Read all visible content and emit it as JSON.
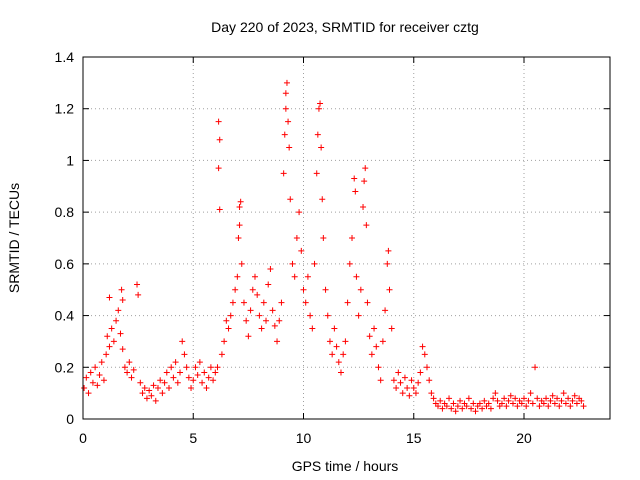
{
  "chart_data": {
    "type": "scatter",
    "title": "Day 220 of 2023, SRMTID for receiver cztg",
    "xlabel": "GPS time / hours",
    "ylabel": "SRMTID / TECUs",
    "xlim": [
      0,
      23.9
    ],
    "ylim": [
      0,
      1.4
    ],
    "x_ticks": [
      0,
      5,
      10,
      15,
      20
    ],
    "x_tick_labels": [
      "0",
      "5",
      "10",
      "15",
      "20"
    ],
    "y_ticks": [
      0,
      0.2,
      0.4,
      0.6,
      0.8,
      1.0,
      1.2,
      1.4
    ],
    "y_tick_labels": [
      "0",
      "0.2",
      "0.4",
      "0.6",
      "0.8",
      "1",
      "1.2",
      "1.4"
    ],
    "grid": true,
    "marker": "+",
    "color": "#ff0000",
    "series": [
      {
        "name": "SRMTID",
        "points": [
          [
            0.05,
            0.12
          ],
          [
            0.15,
            0.16
          ],
          [
            0.25,
            0.1
          ],
          [
            0.35,
            0.18
          ],
          [
            0.45,
            0.14
          ],
          [
            0.55,
            0.2
          ],
          [
            0.65,
            0.13
          ],
          [
            0.75,
            0.17
          ],
          [
            0.85,
            0.22
          ],
          [
            0.95,
            0.15
          ],
          [
            1.05,
            0.25
          ],
          [
            1.1,
            0.32
          ],
          [
            1.2,
            0.28
          ],
          [
            1.3,
            0.35
          ],
          [
            1.4,
            0.3
          ],
          [
            1.5,
            0.38
          ],
          [
            1.6,
            0.42
          ],
          [
            1.7,
            0.33
          ],
          [
            1.8,
            0.27
          ],
          [
            1.9,
            0.2
          ],
          [
            1.2,
            0.47
          ],
          [
            1.75,
            0.5
          ],
          [
            1.8,
            0.46
          ],
          [
            2.0,
            0.18
          ],
          [
            2.1,
            0.22
          ],
          [
            2.2,
            0.16
          ],
          [
            2.3,
            0.19
          ],
          [
            2.45,
            0.52
          ],
          [
            2.5,
            0.48
          ],
          [
            2.6,
            0.14
          ],
          [
            2.7,
            0.1
          ],
          [
            2.8,
            0.12
          ],
          [
            2.9,
            0.08
          ],
          [
            3.0,
            0.11
          ],
          [
            3.1,
            0.09
          ],
          [
            3.2,
            0.13
          ],
          [
            3.3,
            0.07
          ],
          [
            3.4,
            0.12
          ],
          [
            3.5,
            0.15
          ],
          [
            3.6,
            0.1
          ],
          [
            3.7,
            0.14
          ],
          [
            3.8,
            0.18
          ],
          [
            3.9,
            0.12
          ],
          [
            4.0,
            0.2
          ],
          [
            4.1,
            0.16
          ],
          [
            4.2,
            0.22
          ],
          [
            4.3,
            0.14
          ],
          [
            4.4,
            0.18
          ],
          [
            4.5,
            0.3
          ],
          [
            4.6,
            0.25
          ],
          [
            4.7,
            0.2
          ],
          [
            4.8,
            0.16
          ],
          [
            4.9,
            0.12
          ],
          [
            5.0,
            0.15
          ],
          [
            5.1,
            0.2
          ],
          [
            5.2,
            0.17
          ],
          [
            5.3,
            0.22
          ],
          [
            5.4,
            0.14
          ],
          [
            5.5,
            0.18
          ],
          [
            5.6,
            0.12
          ],
          [
            5.7,
            0.16
          ],
          [
            5.8,
            0.2
          ],
          [
            5.9,
            0.15
          ],
          [
            6.0,
            0.18
          ],
          [
            6.1,
            0.2
          ],
          [
            6.15,
            1.15
          ],
          [
            6.2,
            1.08
          ],
          [
            6.15,
            0.97
          ],
          [
            6.2,
            0.81
          ],
          [
            6.3,
            0.25
          ],
          [
            6.4,
            0.3
          ],
          [
            6.5,
            0.38
          ],
          [
            6.6,
            0.35
          ],
          [
            6.7,
            0.4
          ],
          [
            6.8,
            0.45
          ],
          [
            6.9,
            0.5
          ],
          [
            7.0,
            0.55
          ],
          [
            7.05,
            0.7
          ],
          [
            7.1,
            0.75
          ],
          [
            7.1,
            0.82
          ],
          [
            7.15,
            0.84
          ],
          [
            7.2,
            0.6
          ],
          [
            7.3,
            0.45
          ],
          [
            7.4,
            0.38
          ],
          [
            7.5,
            0.32
          ],
          [
            7.6,
            0.42
          ],
          [
            7.7,
            0.5
          ],
          [
            7.8,
            0.55
          ],
          [
            7.9,
            0.48
          ],
          [
            8.0,
            0.4
          ],
          [
            8.1,
            0.35
          ],
          [
            8.2,
            0.45
          ],
          [
            8.3,
            0.38
          ],
          [
            8.4,
            0.52
          ],
          [
            8.5,
            0.58
          ],
          [
            8.6,
            0.42
          ],
          [
            8.7,
            0.36
          ],
          [
            8.8,
            0.3
          ],
          [
            8.9,
            0.38
          ],
          [
            9.0,
            0.45
          ],
          [
            9.1,
            0.95
          ],
          [
            9.15,
            1.1
          ],
          [
            9.2,
            1.2
          ],
          [
            9.2,
            1.26
          ],
          [
            9.25,
            1.3
          ],
          [
            9.3,
            1.15
          ],
          [
            9.35,
            1.05
          ],
          [
            9.4,
            0.85
          ],
          [
            9.5,
            0.6
          ],
          [
            9.6,
            0.55
          ],
          [
            9.7,
            0.7
          ],
          [
            9.8,
            0.8
          ],
          [
            9.9,
            0.65
          ],
          [
            10.0,
            0.5
          ],
          [
            10.1,
            0.45
          ],
          [
            10.2,
            0.55
          ],
          [
            10.3,
            0.4
          ],
          [
            10.4,
            0.35
          ],
          [
            10.5,
            0.6
          ],
          [
            10.6,
            0.95
          ],
          [
            10.65,
            1.1
          ],
          [
            10.7,
            1.2
          ],
          [
            10.75,
            1.22
          ],
          [
            10.8,
            1.05
          ],
          [
            10.85,
            0.85
          ],
          [
            10.9,
            0.7
          ],
          [
            11.0,
            0.5
          ],
          [
            11.1,
            0.4
          ],
          [
            11.2,
            0.3
          ],
          [
            11.3,
            0.25
          ],
          [
            11.4,
            0.35
          ],
          [
            11.5,
            0.28
          ],
          [
            11.6,
            0.22
          ],
          [
            11.7,
            0.18
          ],
          [
            11.8,
            0.25
          ],
          [
            11.9,
            0.3
          ],
          [
            12.0,
            0.45
          ],
          [
            12.1,
            0.6
          ],
          [
            12.2,
            0.7
          ],
          [
            12.3,
            0.93
          ],
          [
            12.35,
            0.88
          ],
          [
            12.4,
            0.55
          ],
          [
            12.5,
            0.4
          ],
          [
            12.6,
            0.5
          ],
          [
            12.7,
            0.82
          ],
          [
            12.75,
            0.92
          ],
          [
            12.8,
            0.97
          ],
          [
            12.85,
            0.75
          ],
          [
            12.9,
            0.45
          ],
          [
            13.0,
            0.32
          ],
          [
            13.1,
            0.25
          ],
          [
            13.2,
            0.35
          ],
          [
            13.3,
            0.28
          ],
          [
            13.4,
            0.2
          ],
          [
            13.5,
            0.15
          ],
          [
            13.6,
            0.3
          ],
          [
            13.7,
            0.42
          ],
          [
            13.8,
            0.6
          ],
          [
            13.85,
            0.65
          ],
          [
            13.9,
            0.5
          ],
          [
            14.0,
            0.35
          ],
          [
            14.1,
            0.15
          ],
          [
            14.2,
            0.12
          ],
          [
            14.3,
            0.18
          ],
          [
            14.4,
            0.14
          ],
          [
            14.5,
            0.1
          ],
          [
            14.6,
            0.16
          ],
          [
            14.7,
            0.12
          ],
          [
            14.8,
            0.09
          ],
          [
            14.9,
            0.15
          ],
          [
            15.0,
            0.12
          ],
          [
            15.1,
            0.1
          ],
          [
            15.2,
            0.14
          ],
          [
            15.3,
            0.18
          ],
          [
            15.4,
            0.28
          ],
          [
            15.5,
            0.25
          ],
          [
            15.6,
            0.2
          ],
          [
            15.7,
            0.15
          ],
          [
            15.8,
            0.1
          ],
          [
            15.9,
            0.08
          ],
          [
            16.0,
            0.06
          ],
          [
            16.1,
            0.05
          ],
          [
            16.2,
            0.07
          ],
          [
            16.3,
            0.04
          ],
          [
            16.4,
            0.06
          ],
          [
            16.5,
            0.05
          ],
          [
            16.6,
            0.08
          ],
          [
            16.7,
            0.04
          ],
          [
            16.8,
            0.06
          ],
          [
            16.9,
            0.03
          ],
          [
            17.0,
            0.05
          ],
          [
            17.1,
            0.07
          ],
          [
            17.2,
            0.04
          ],
          [
            17.3,
            0.06
          ],
          [
            17.4,
            0.05
          ],
          [
            17.5,
            0.08
          ],
          [
            17.6,
            0.04
          ],
          [
            17.7,
            0.06
          ],
          [
            17.8,
            0.03
          ],
          [
            17.9,
            0.05
          ],
          [
            18.0,
            0.06
          ],
          [
            18.1,
            0.04
          ],
          [
            18.2,
            0.07
          ],
          [
            18.3,
            0.05
          ],
          [
            18.4,
            0.06
          ],
          [
            18.5,
            0.04
          ],
          [
            18.6,
            0.08
          ],
          [
            18.7,
            0.1
          ],
          [
            18.8,
            0.07
          ],
          [
            18.9,
            0.05
          ],
          [
            19.0,
            0.06
          ],
          [
            19.1,
            0.08
          ],
          [
            19.2,
            0.05
          ],
          [
            19.3,
            0.07
          ],
          [
            19.4,
            0.09
          ],
          [
            19.5,
            0.06
          ],
          [
            19.6,
            0.08
          ],
          [
            19.7,
            0.05
          ],
          [
            19.8,
            0.07
          ],
          [
            19.9,
            0.06
          ],
          [
            20.0,
            0.08
          ],
          [
            20.1,
            0.05
          ],
          [
            20.2,
            0.07
          ],
          [
            20.3,
            0.1
          ],
          [
            20.4,
            0.06
          ],
          [
            20.5,
            0.2
          ],
          [
            20.6,
            0.08
          ],
          [
            20.7,
            0.05
          ],
          [
            20.8,
            0.07
          ],
          [
            20.9,
            0.06
          ],
          [
            21.0,
            0.08
          ],
          [
            21.1,
            0.05
          ],
          [
            21.2,
            0.07
          ],
          [
            21.3,
            0.09
          ],
          [
            21.4,
            0.06
          ],
          [
            21.5,
            0.08
          ],
          [
            21.6,
            0.05
          ],
          [
            21.7,
            0.07
          ],
          [
            21.8,
            0.1
          ],
          [
            21.9,
            0.06
          ],
          [
            22.0,
            0.08
          ],
          [
            22.1,
            0.05
          ],
          [
            22.2,
            0.07
          ],
          [
            22.3,
            0.09
          ],
          [
            22.4,
            0.06
          ],
          [
            22.5,
            0.08
          ],
          [
            22.6,
            0.07
          ],
          [
            22.7,
            0.05
          ]
        ]
      }
    ]
  }
}
